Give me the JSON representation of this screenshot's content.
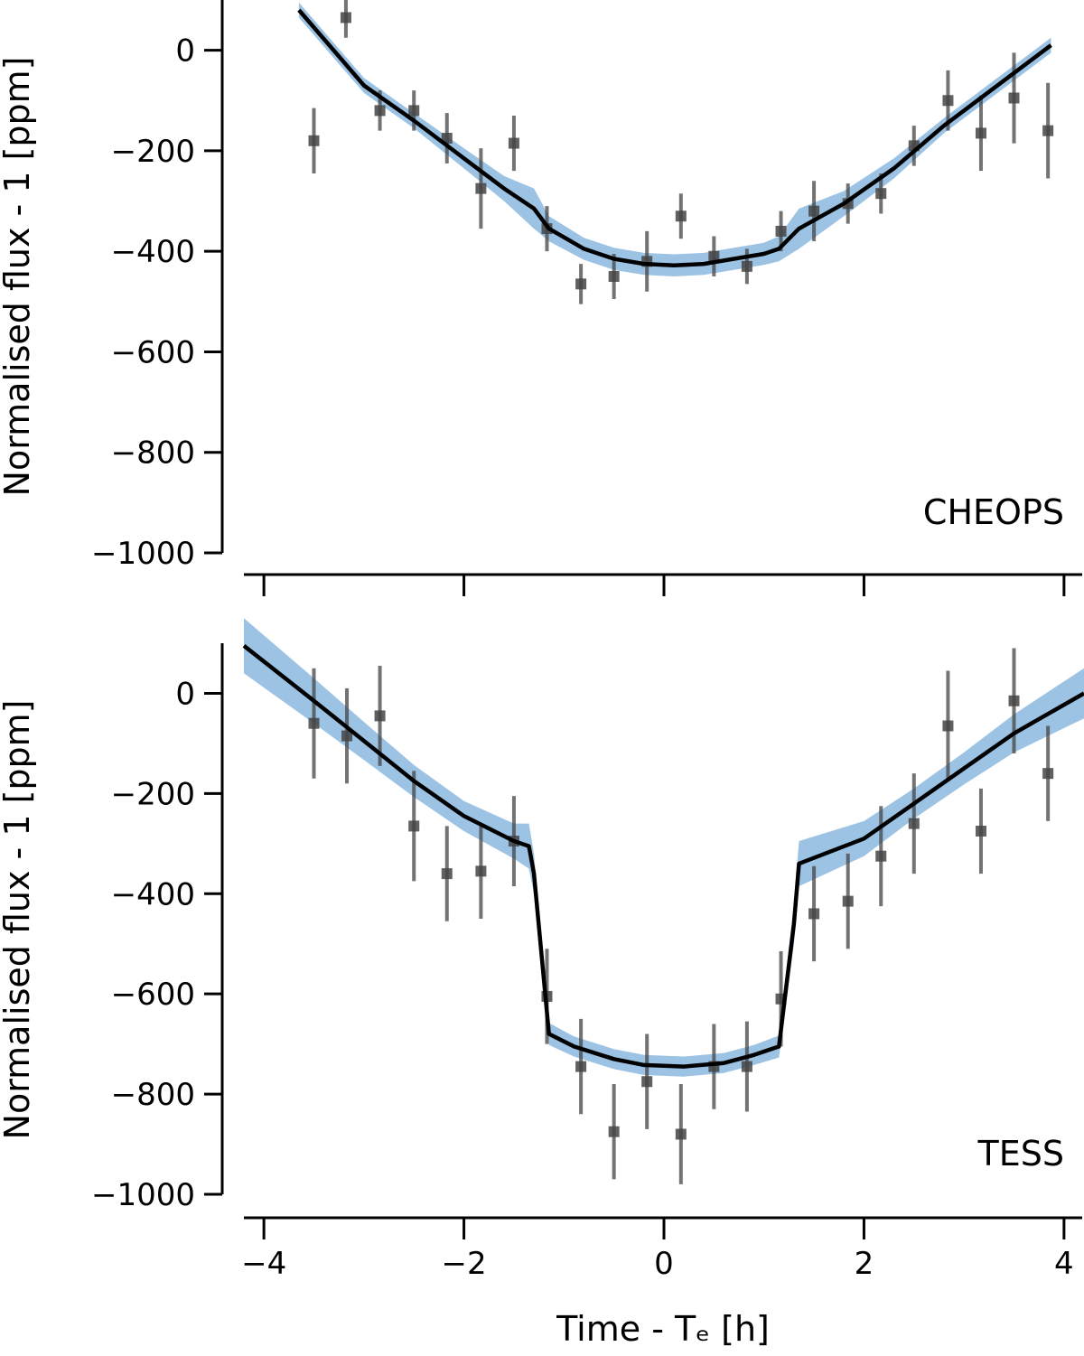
{
  "chart_data": [
    {
      "type": "scatter",
      "panel_label": "CHEOPS",
      "xlabel": "",
      "ylabel": "Normalised flux - 1 [ppm]",
      "xlim": [
        -4.2,
        4.2
      ],
      "ylim": [
        -1000,
        100
      ],
      "x_ticks": [
        -4,
        -2,
        0,
        2,
        4
      ],
      "x_tick_labels": [
        "",
        "",
        "",
        "",
        ""
      ],
      "y_ticks": [
        0,
        -200,
        -400,
        -600,
        -800,
        -1000
      ],
      "y_tick_labels": [
        "0",
        "−200",
        "−400",
        "−600",
        "−800",
        "−1000"
      ],
      "colors": {
        "points": "#444444",
        "model": "#000000",
        "band": "#9cc3e4"
      },
      "points": [
        {
          "x": -3.5,
          "y": -180,
          "err": 65
        },
        {
          "x": -3.18,
          "y": 65,
          "err": 40
        },
        {
          "x": -2.84,
          "y": -120,
          "err": 40
        },
        {
          "x": -2.5,
          "y": -120,
          "err": 40
        },
        {
          "x": -2.17,
          "y": -175,
          "err": 50
        },
        {
          "x": -1.83,
          "y": -275,
          "err": 80
        },
        {
          "x": -1.5,
          "y": -185,
          "err": 55
        },
        {
          "x": -1.17,
          "y": -355,
          "err": 45
        },
        {
          "x": -0.83,
          "y": -465,
          "err": 40
        },
        {
          "x": -0.5,
          "y": -450,
          "err": 45
        },
        {
          "x": -0.17,
          "y": -420,
          "err": 60
        },
        {
          "x": 0.17,
          "y": -330,
          "err": 45
        },
        {
          "x": 0.5,
          "y": -410,
          "err": 40
        },
        {
          "x": 0.83,
          "y": -430,
          "err": 35
        },
        {
          "x": 1.17,
          "y": -360,
          "err": 40
        },
        {
          "x": 1.5,
          "y": -320,
          "err": 60
        },
        {
          "x": 1.84,
          "y": -305,
          "err": 40
        },
        {
          "x": 2.17,
          "y": -285,
          "err": 40
        },
        {
          "x": 2.5,
          "y": -190,
          "err": 40
        },
        {
          "x": 2.84,
          "y": -100,
          "err": 60
        },
        {
          "x": 3.17,
          "y": -165,
          "err": 75
        },
        {
          "x": 3.5,
          "y": -95,
          "err": 90
        },
        {
          "x": 3.84,
          "y": -160,
          "err": 95
        }
      ],
      "model": {
        "x": [
          -3.65,
          -3.0,
          -2.5,
          -2.0,
          -1.6,
          -1.3,
          -1.15,
          -0.8,
          -0.5,
          -0.2,
          0.1,
          0.4,
          0.7,
          1.0,
          1.15,
          1.35,
          1.8,
          2.3,
          2.8,
          3.3,
          3.87
        ],
        "y": [
          80,
          -70,
          -140,
          -215,
          -275,
          -315,
          -355,
          -395,
          -415,
          -425,
          -428,
          -425,
          -415,
          -405,
          -395,
          -355,
          -305,
          -235,
          -150,
          -75,
          10
        ],
        "band": [
          15,
          15,
          15,
          20,
          25,
          40,
          25,
          22,
          22,
          22,
          22,
          22,
          22,
          22,
          25,
          40,
          25,
          20,
          15,
          15,
          15
        ]
      }
    },
    {
      "type": "scatter",
      "panel_label": "TESS",
      "xlabel": "Time - Tₑ [h]",
      "ylabel": "Normalised flux - 1 [ppm]",
      "xlim": [
        -4.2,
        4.2
      ],
      "ylim": [
        -1000,
        100
      ],
      "x_ticks": [
        -4,
        -2,
        0,
        2,
        4
      ],
      "x_tick_labels": [
        "−4",
        "−2",
        "0",
        "2",
        "4"
      ],
      "y_ticks": [
        0,
        -200,
        -400,
        -600,
        -800,
        -1000
      ],
      "y_tick_labels": [
        "0",
        "−200",
        "−400",
        "−600",
        "−800",
        "−1000"
      ],
      "colors": {
        "points": "#444444",
        "model": "#000000",
        "band": "#9cc3e4"
      },
      "points": [
        {
          "x": -3.5,
          "y": -60,
          "err": 110
        },
        {
          "x": -3.17,
          "y": -85,
          "err": 95
        },
        {
          "x": -2.84,
          "y": -45,
          "err": 100
        },
        {
          "x": -2.5,
          "y": -265,
          "err": 110
        },
        {
          "x": -2.17,
          "y": -360,
          "err": 95
        },
        {
          "x": -1.83,
          "y": -355,
          "err": 95
        },
        {
          "x": -1.5,
          "y": -295,
          "err": 90
        },
        {
          "x": -1.17,
          "y": -605,
          "err": 95
        },
        {
          "x": -0.83,
          "y": -745,
          "err": 95
        },
        {
          "x": -0.5,
          "y": -875,
          "err": 95
        },
        {
          "x": -0.17,
          "y": -775,
          "err": 95
        },
        {
          "x": 0.17,
          "y": -880,
          "err": 100
        },
        {
          "x": 0.5,
          "y": -745,
          "err": 85
        },
        {
          "x": 0.83,
          "y": -745,
          "err": 90
        },
        {
          "x": 1.17,
          "y": -610,
          "err": 95
        },
        {
          "x": 1.5,
          "y": -440,
          "err": 95
        },
        {
          "x": 1.84,
          "y": -415,
          "err": 95
        },
        {
          "x": 2.17,
          "y": -325,
          "err": 100
        },
        {
          "x": 2.5,
          "y": -260,
          "err": 100
        },
        {
          "x": 2.84,
          "y": -65,
          "err": 110
        },
        {
          "x": 3.17,
          "y": -275,
          "err": 85
        },
        {
          "x": 3.5,
          "y": -15,
          "err": 105
        },
        {
          "x": 3.84,
          "y": -160,
          "err": 95
        }
      ],
      "model": {
        "x": [
          -4.2,
          -3.5,
          -3.0,
          -2.5,
          -2.0,
          -1.5,
          -1.35,
          -1.3,
          -1.15,
          -0.9,
          -0.5,
          -0.2,
          0.2,
          0.6,
          0.9,
          1.15,
          1.3,
          1.35,
          2.0,
          2.5,
          3.0,
          3.5,
          4.2
        ],
        "y": [
          95,
          -15,
          -95,
          -175,
          -245,
          -295,
          -305,
          -360,
          -680,
          -705,
          -730,
          -742,
          -745,
          -738,
          -722,
          -705,
          -460,
          -340,
          -290,
          -220,
          -150,
          -80,
          0
        ],
        "band": [
          55,
          45,
          38,
          32,
          30,
          35,
          45,
          40,
          22,
          20,
          20,
          20,
          20,
          20,
          20,
          22,
          40,
          45,
          35,
          30,
          32,
          38,
          50
        ]
      }
    }
  ]
}
